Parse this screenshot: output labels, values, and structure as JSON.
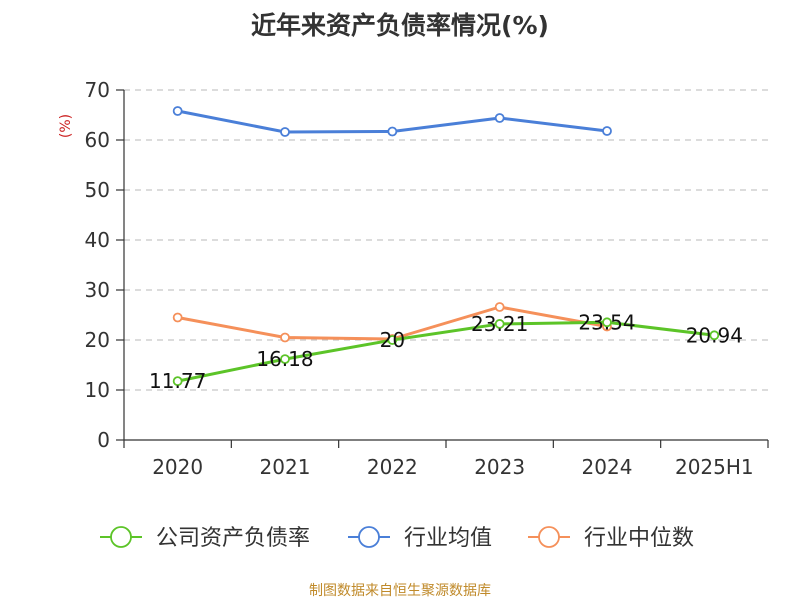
{
  "chart_data": {
    "type": "line",
    "title": "近年来资产负债率情况(%)",
    "ylabel": "(%)",
    "categories": [
      "2020",
      "2021",
      "2022",
      "2023",
      "2024",
      "2025H1"
    ],
    "ylim": [
      0,
      70
    ],
    "yticks": [
      0,
      10,
      20,
      30,
      40,
      50,
      60,
      70
    ],
    "grid": true,
    "legend_position": "bottom",
    "series": [
      {
        "name": "公司资产负债率",
        "color": "#5cc428",
        "values": [
          11.77,
          16.18,
          20,
          23.21,
          23.54,
          20.94
        ],
        "labels": [
          "11.77",
          "16.18",
          "20",
          "23.21",
          "23.54",
          "20.94"
        ]
      },
      {
        "name": "行业均值",
        "color": "#4a7fd8",
        "values": [
          65.8,
          61.6,
          61.7,
          64.4,
          61.8,
          null
        ]
      },
      {
        "name": "行业中位数",
        "color": "#f5905a",
        "values": [
          24.5,
          20.5,
          20.2,
          26.6,
          22.7,
          null
        ]
      }
    ]
  },
  "colors": {
    "unit_label": "#cc2222",
    "axis": "#333333",
    "grid": "#c8c8c8",
    "source": "#c08a2a"
  },
  "footer": {
    "source": "制图数据来自恒生聚源数据库"
  }
}
